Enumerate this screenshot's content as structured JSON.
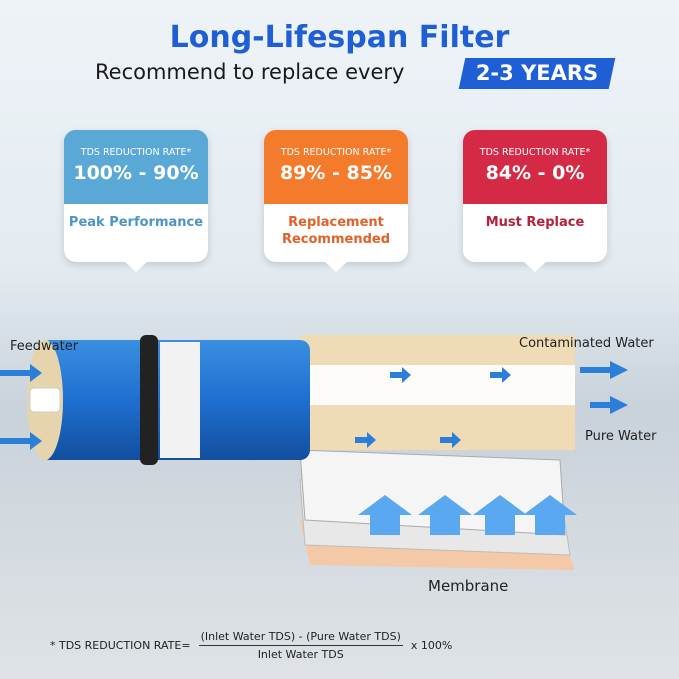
{
  "header": {
    "title": "Long-Lifespan Filter",
    "subtitle": "Recommend to replace every",
    "badge": "2-3 YEARS"
  },
  "cards": [
    {
      "label": "TDS REDUCTION RATE*",
      "value": "100% - 90%",
      "status": "Peak Performance",
      "color": "#5aa8d6",
      "text_color": "#4c94c6"
    },
    {
      "label": "TDS REDUCTION RATE*",
      "value": "89% - 85%",
      "status": "Replacement Recommended",
      "color": "#f47a2c",
      "text_color": "#e0612a"
    },
    {
      "label": "TDS REDUCTION RATE*",
      "value": "84% - 0%",
      "status": "Must Replace",
      "color": "#d52a45",
      "text_color": "#b5203a"
    }
  ],
  "diagram": {
    "feedwater": "Feedwater",
    "contaminated": "Contaminated Water",
    "pure": "Pure Water",
    "membrane": "Membrane"
  },
  "formula": {
    "prefix": "*  TDS REDUCTION RATE=",
    "numerator": "(Inlet Water TDS) - (Pure Water TDS)",
    "denominator": "Inlet Water TDS",
    "suffix": "x 100%"
  }
}
